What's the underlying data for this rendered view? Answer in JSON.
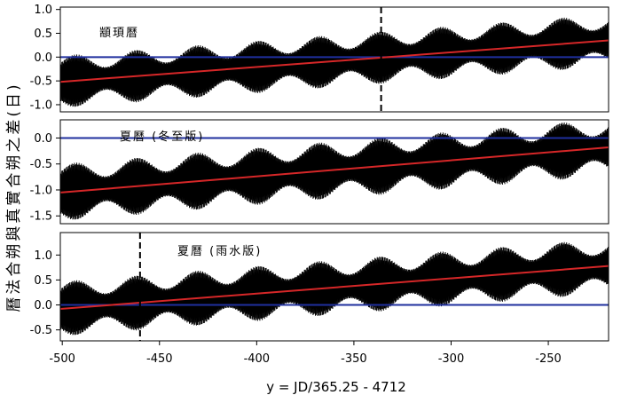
{
  "chart_data": [
    {
      "type": "line",
      "panel_label": "顓頊曆",
      "xlim": [
        -501,
        -219
      ],
      "ylim": [
        -1.15,
        1.05
      ],
      "yticks": [
        "1.0",
        "0.5",
        "0.0",
        "-0.5",
        "-1.0"
      ],
      "ytick_values": [
        1.0,
        0.5,
        0.0,
        -0.5,
        -1.0
      ],
      "oscillation": {
        "center_start": -0.52,
        "center_end": 0.35,
        "amplitude_start": 0.55,
        "amplitude_end": 0.55,
        "cycles": 95
      },
      "trend_line": {
        "x": [
          -501,
          -219
        ],
        "y": [
          -0.52,
          0.35
        ],
        "color": "#d62728"
      },
      "zero_line": {
        "y": 0.0,
        "color": "#1f2f9e"
      },
      "vline": {
        "x": -336,
        "style": "dashed"
      }
    },
    {
      "type": "line",
      "panel_label": "夏曆 (冬至版)",
      "xlim": [
        -501,
        -219
      ],
      "ylim": [
        -1.65,
        0.35
      ],
      "yticks": [
        "0.0",
        "-0.5",
        "-1.0",
        "-1.5"
      ],
      "ytick_values": [
        0.0,
        -0.5,
        -1.0,
        -1.5
      ],
      "oscillation": {
        "center_start": -1.05,
        "center_end": -0.18,
        "amplitude_start": 0.55,
        "amplitude_end": 0.55,
        "cycles": 95
      },
      "trend_line": {
        "x": [
          -501,
          -219
        ],
        "y": [
          -1.05,
          -0.18
        ],
        "color": "#d62728"
      },
      "zero_line": {
        "y": 0.0,
        "color": "#1f2f9e"
      },
      "vline": null
    },
    {
      "type": "line",
      "panel_label": "夏曆 (雨水版)",
      "xlim": [
        -501,
        -219
      ],
      "ylim": [
        -0.72,
        1.45
      ],
      "yticks": [
        "1.0",
        "0.5",
        "0.0",
        "-0.5"
      ],
      "ytick_values": [
        1.0,
        0.5,
        0.0,
        -0.5
      ],
      "oscillation": {
        "center_start": -0.08,
        "center_end": 0.78,
        "amplitude_start": 0.55,
        "amplitude_end": 0.55,
        "cycles": 95
      },
      "trend_line": {
        "x": [
          -501,
          -219
        ],
        "y": [
          -0.08,
          0.78
        ],
        "color": "#d62728"
      },
      "zero_line": {
        "y": 0.0,
        "color": "#1f2f9e"
      },
      "vline": {
        "x": -460,
        "style": "dashed"
      }
    }
  ],
  "axes": {
    "xticks": [
      "-500",
      "-450",
      "-400",
      "-350",
      "-300",
      "-250"
    ],
    "xtick_values": [
      -500,
      -450,
      -400,
      -350,
      -300,
      -250
    ],
    "xlabel": "y = JD/365.25 - 4712",
    "ylabel": "曆法合朔與真實合朔之差(日)"
  },
  "colors": {
    "trend": "#d62728",
    "zero": "#1f2f9e",
    "series": "#000000"
  }
}
